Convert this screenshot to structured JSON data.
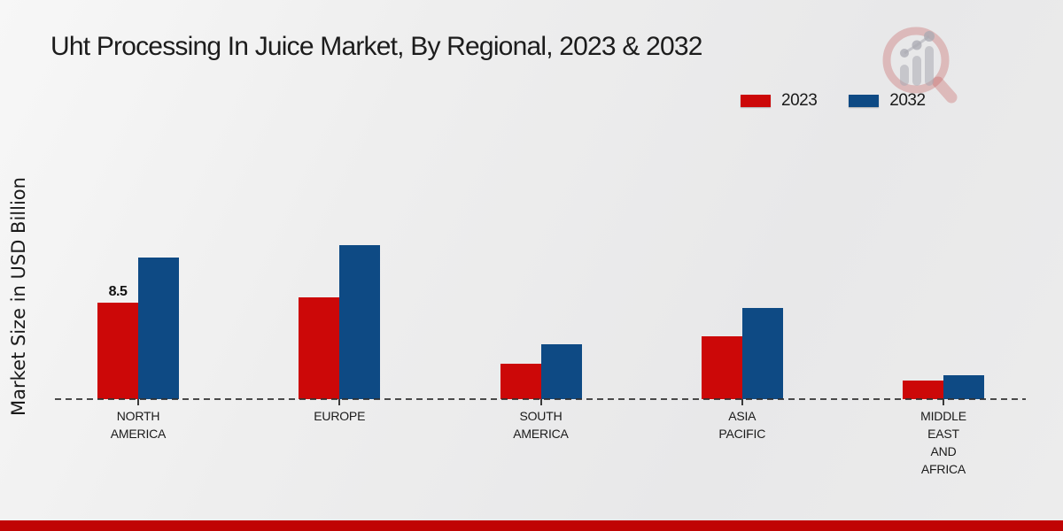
{
  "title": "Uht Processing In Juice Market, By Regional, 2023 & 2032",
  "y_axis_label": "Market Size in USD Billion",
  "legend": {
    "position": "top-right",
    "items": [
      {
        "label": "2023",
        "color": "#cc0808"
      },
      {
        "label": "2032",
        "color": "#0e4a84"
      }
    ]
  },
  "logo": {
    "icon": "magnifier-bar-chart-logo",
    "ring_color": "#d89a9a",
    "bars_color": "#c6c6ca"
  },
  "colors": {
    "series_2023": "#cc0808",
    "series_2032": "#0e4a84",
    "footer_strip": "#c00404",
    "text": "#1a1a1a",
    "axis": "#2d2d2d"
  },
  "chart_data": {
    "type": "bar",
    "title": "Uht Processing In Juice Market, By Regional, 2023 & 2032",
    "xlabel": "",
    "ylabel": "Market Size in USD Billion",
    "categories": [
      "North America",
      "Europe",
      "South America",
      "Asia Pacific",
      "Middle East and Africa"
    ],
    "category_label_lines": [
      [
        "NORTH",
        "AMERICA"
      ],
      [
        "EUROPE"
      ],
      [
        "SOUTH",
        "AMERICA"
      ],
      [
        "ASIA",
        "PACIFIC"
      ],
      [
        "MIDDLE",
        "EAST",
        "AND",
        "AFRICA"
      ]
    ],
    "series": [
      {
        "name": "2023",
        "color": "#cc0808",
        "values": [
          8.5,
          9.0,
          3.1,
          5.5,
          1.6
        ]
      },
      {
        "name": "2032",
        "color": "#0e4a84",
        "values": [
          12.5,
          13.6,
          4.8,
          8.0,
          2.1
        ]
      }
    ],
    "bar_value_labels": [
      {
        "series": "2023",
        "category": "North America",
        "text": "8.5"
      }
    ],
    "ylim": [
      0,
      14
    ],
    "grid": false,
    "y_axis_ticks_visible": false,
    "baseline_style": "dashed",
    "legend_position": "top-right"
  }
}
